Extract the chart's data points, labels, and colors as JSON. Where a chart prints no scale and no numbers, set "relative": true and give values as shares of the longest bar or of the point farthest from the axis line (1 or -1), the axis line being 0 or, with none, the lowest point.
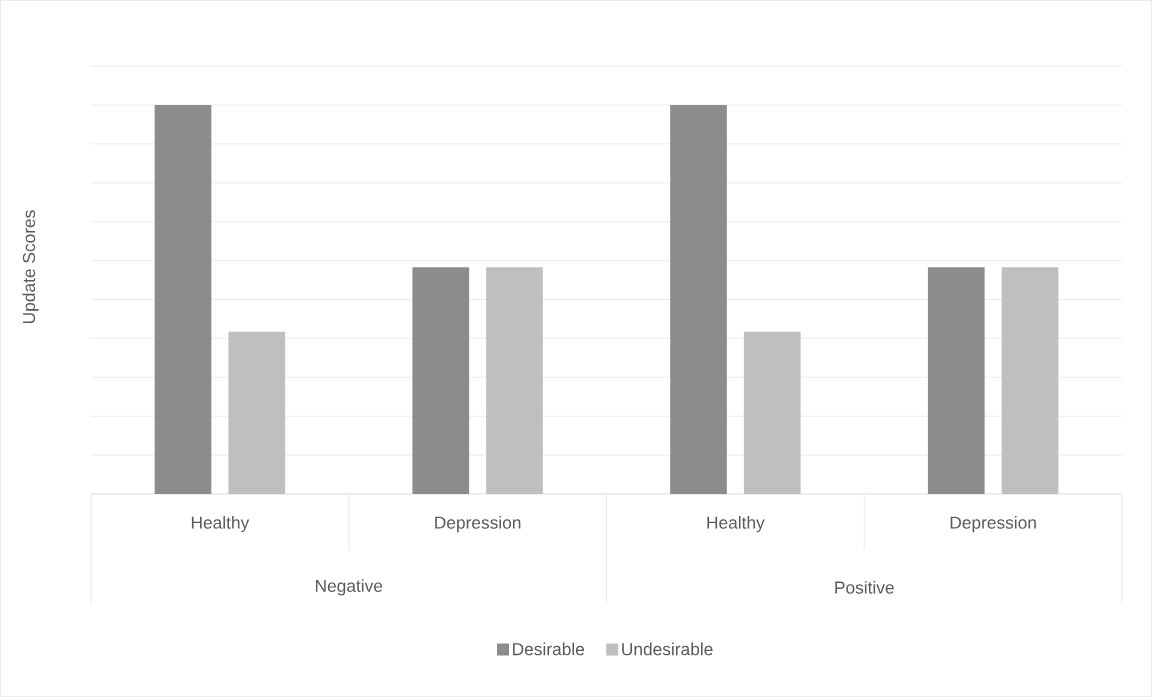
{
  "chart_data": {
    "type": "bar",
    "relative": true,
    "ylabel": "Update Scores",
    "categories": [
      "Healthy",
      "Depression",
      "Healthy",
      "Depression"
    ],
    "annotations": [
      "Negative",
      "Positive"
    ],
    "series": [
      {
        "name": "Desirable",
        "color": "#8c8c8c",
        "values": [
          1,
          0.583,
          1,
          0.583
        ]
      },
      {
        "name": "Undesirable",
        "color": "#bfbfbf",
        "values": [
          0.417,
          0.583,
          0.417,
          0.583
        ]
      }
    ],
    "grid": "y",
    "legend": "bottom"
  }
}
